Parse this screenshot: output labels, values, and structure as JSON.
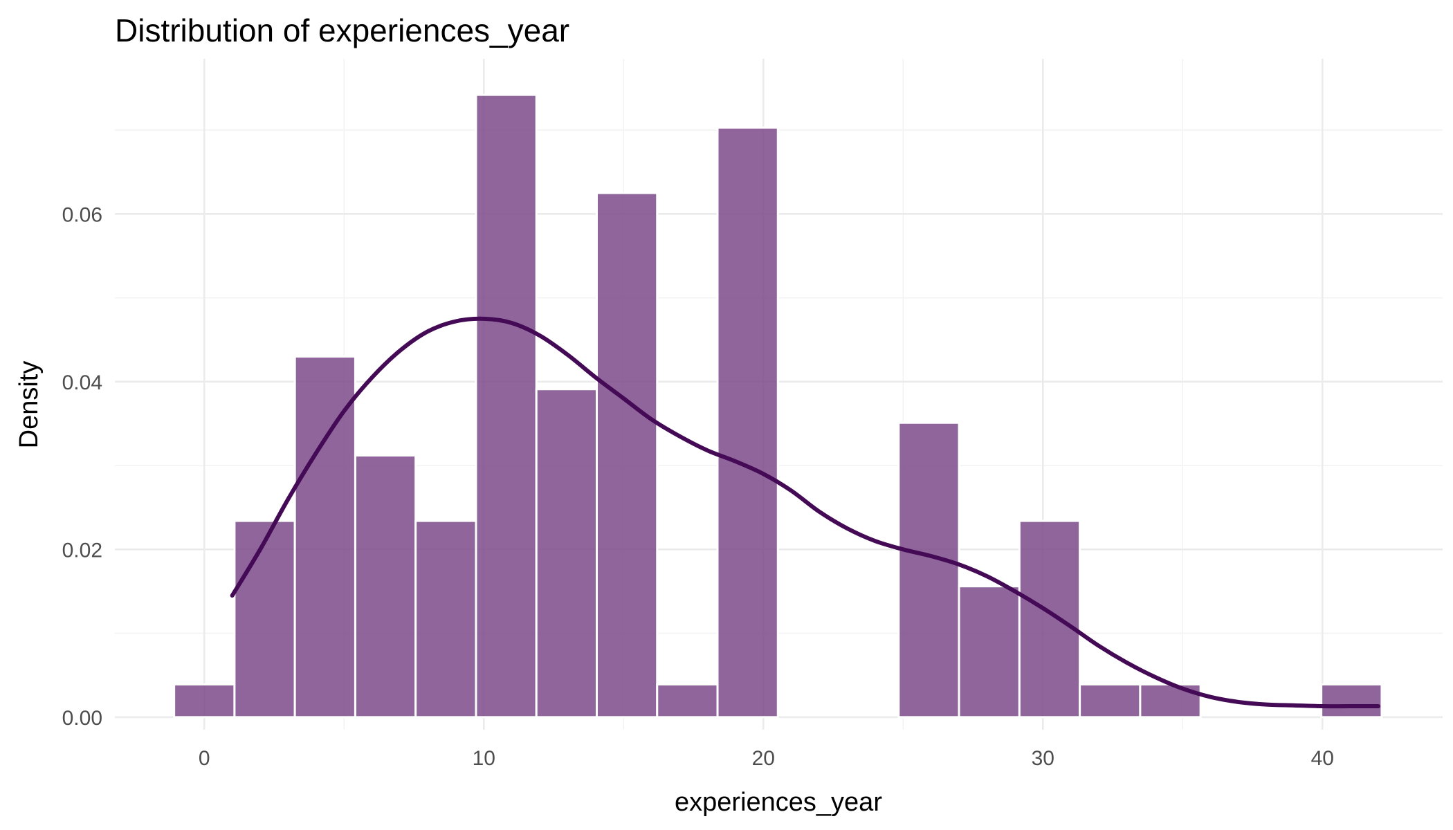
{
  "chart_data": {
    "type": "bar",
    "title": "Distribution of experiences_year",
    "xlabel": "experiences_year",
    "ylabel": "Density",
    "xlim": [
      -3.2,
      44.3
    ],
    "ylim": [
      -0.0015,
      0.0785
    ],
    "x_ticks": [
      {
        "value": 0,
        "label": "0"
      },
      {
        "value": 10,
        "label": "10"
      },
      {
        "value": 20,
        "label": "20"
      },
      {
        "value": 30,
        "label": "30"
      },
      {
        "value": 40,
        "label": "40"
      }
    ],
    "y_ticks": [
      {
        "value": 0.0,
        "label": "0.00"
      },
      {
        "value": 0.02,
        "label": "0.02"
      },
      {
        "value": 0.04,
        "label": "0.04"
      },
      {
        "value": 0.06,
        "label": "0.06"
      }
    ],
    "x_minor": [
      5,
      15,
      25,
      35
    ],
    "y_minor": [
      0.01,
      0.03,
      0.05,
      0.07
    ],
    "grid": true,
    "bin_width": 2.16,
    "bins": [
      {
        "x0": -1.08,
        "x1": 1.08,
        "density": 0.0039
      },
      {
        "x0": 1.08,
        "x1": 3.24,
        "density": 0.0234
      },
      {
        "x0": 3.24,
        "x1": 5.4,
        "density": 0.043
      },
      {
        "x0": 5.4,
        "x1": 7.56,
        "density": 0.0312
      },
      {
        "x0": 7.56,
        "x1": 9.72,
        "density": 0.0234
      },
      {
        "x0": 9.72,
        "x1": 11.88,
        "density": 0.0742
      },
      {
        "x0": 11.88,
        "x1": 14.04,
        "density": 0.0391
      },
      {
        "x0": 14.04,
        "x1": 16.2,
        "density": 0.0625
      },
      {
        "x0": 16.2,
        "x1": 18.36,
        "density": 0.0039
      },
      {
        "x0": 18.36,
        "x1": 20.52,
        "density": 0.0703
      },
      {
        "x0": 20.52,
        "x1": 22.68,
        "density": 0
      },
      {
        "x0": 22.68,
        "x1": 24.84,
        "density": 0
      },
      {
        "x0": 24.84,
        "x1": 27.0,
        "density": 0.0351
      },
      {
        "x0": 27.0,
        "x1": 29.16,
        "density": 0.0156
      },
      {
        "x0": 29.16,
        "x1": 31.32,
        "density": 0.0234
      },
      {
        "x0": 31.32,
        "x1": 33.48,
        "density": 0.0039
      },
      {
        "x0": 33.48,
        "x1": 35.64,
        "density": 0.0039
      },
      {
        "x0": 35.64,
        "x1": 37.8,
        "density": 0
      },
      {
        "x0": 37.8,
        "x1": 39.96,
        "density": 0
      },
      {
        "x0": 39.96,
        "x1": 42.12,
        "density": 0.0039
      }
    ],
    "density_curve": {
      "x": [
        1,
        2,
        3,
        4,
        5,
        6,
        7,
        8,
        9,
        10,
        11,
        12,
        13,
        14,
        15,
        16,
        17,
        18,
        19,
        20,
        21,
        22,
        23,
        24,
        25,
        26,
        27,
        28,
        29,
        30,
        31,
        32,
        33,
        34,
        35,
        36,
        37,
        38,
        39,
        40,
        41,
        42
      ],
      "y": [
        0.0145,
        0.02,
        0.026,
        0.0315,
        0.0365,
        0.0405,
        0.0437,
        0.046,
        0.0472,
        0.0475,
        0.047,
        0.0455,
        0.0432,
        0.0405,
        0.038,
        0.0355,
        0.0335,
        0.0318,
        0.0305,
        0.029,
        0.027,
        0.0245,
        0.0225,
        0.021,
        0.02,
        0.0192,
        0.0182,
        0.0168,
        0.015,
        0.013,
        0.0108,
        0.0085,
        0.0065,
        0.0048,
        0.0034,
        0.0024,
        0.0018,
        0.0015,
        0.0014,
        0.0013,
        0.0013,
        0.0013
      ]
    },
    "colors": {
      "bar_fill": "#7b4a8a",
      "bar_opacity": 0.85,
      "bar_stroke": "#ffffff",
      "curve": "#440a55",
      "grid_major": "#ebebeb",
      "grid_minor": "#f3f3f3"
    }
  }
}
